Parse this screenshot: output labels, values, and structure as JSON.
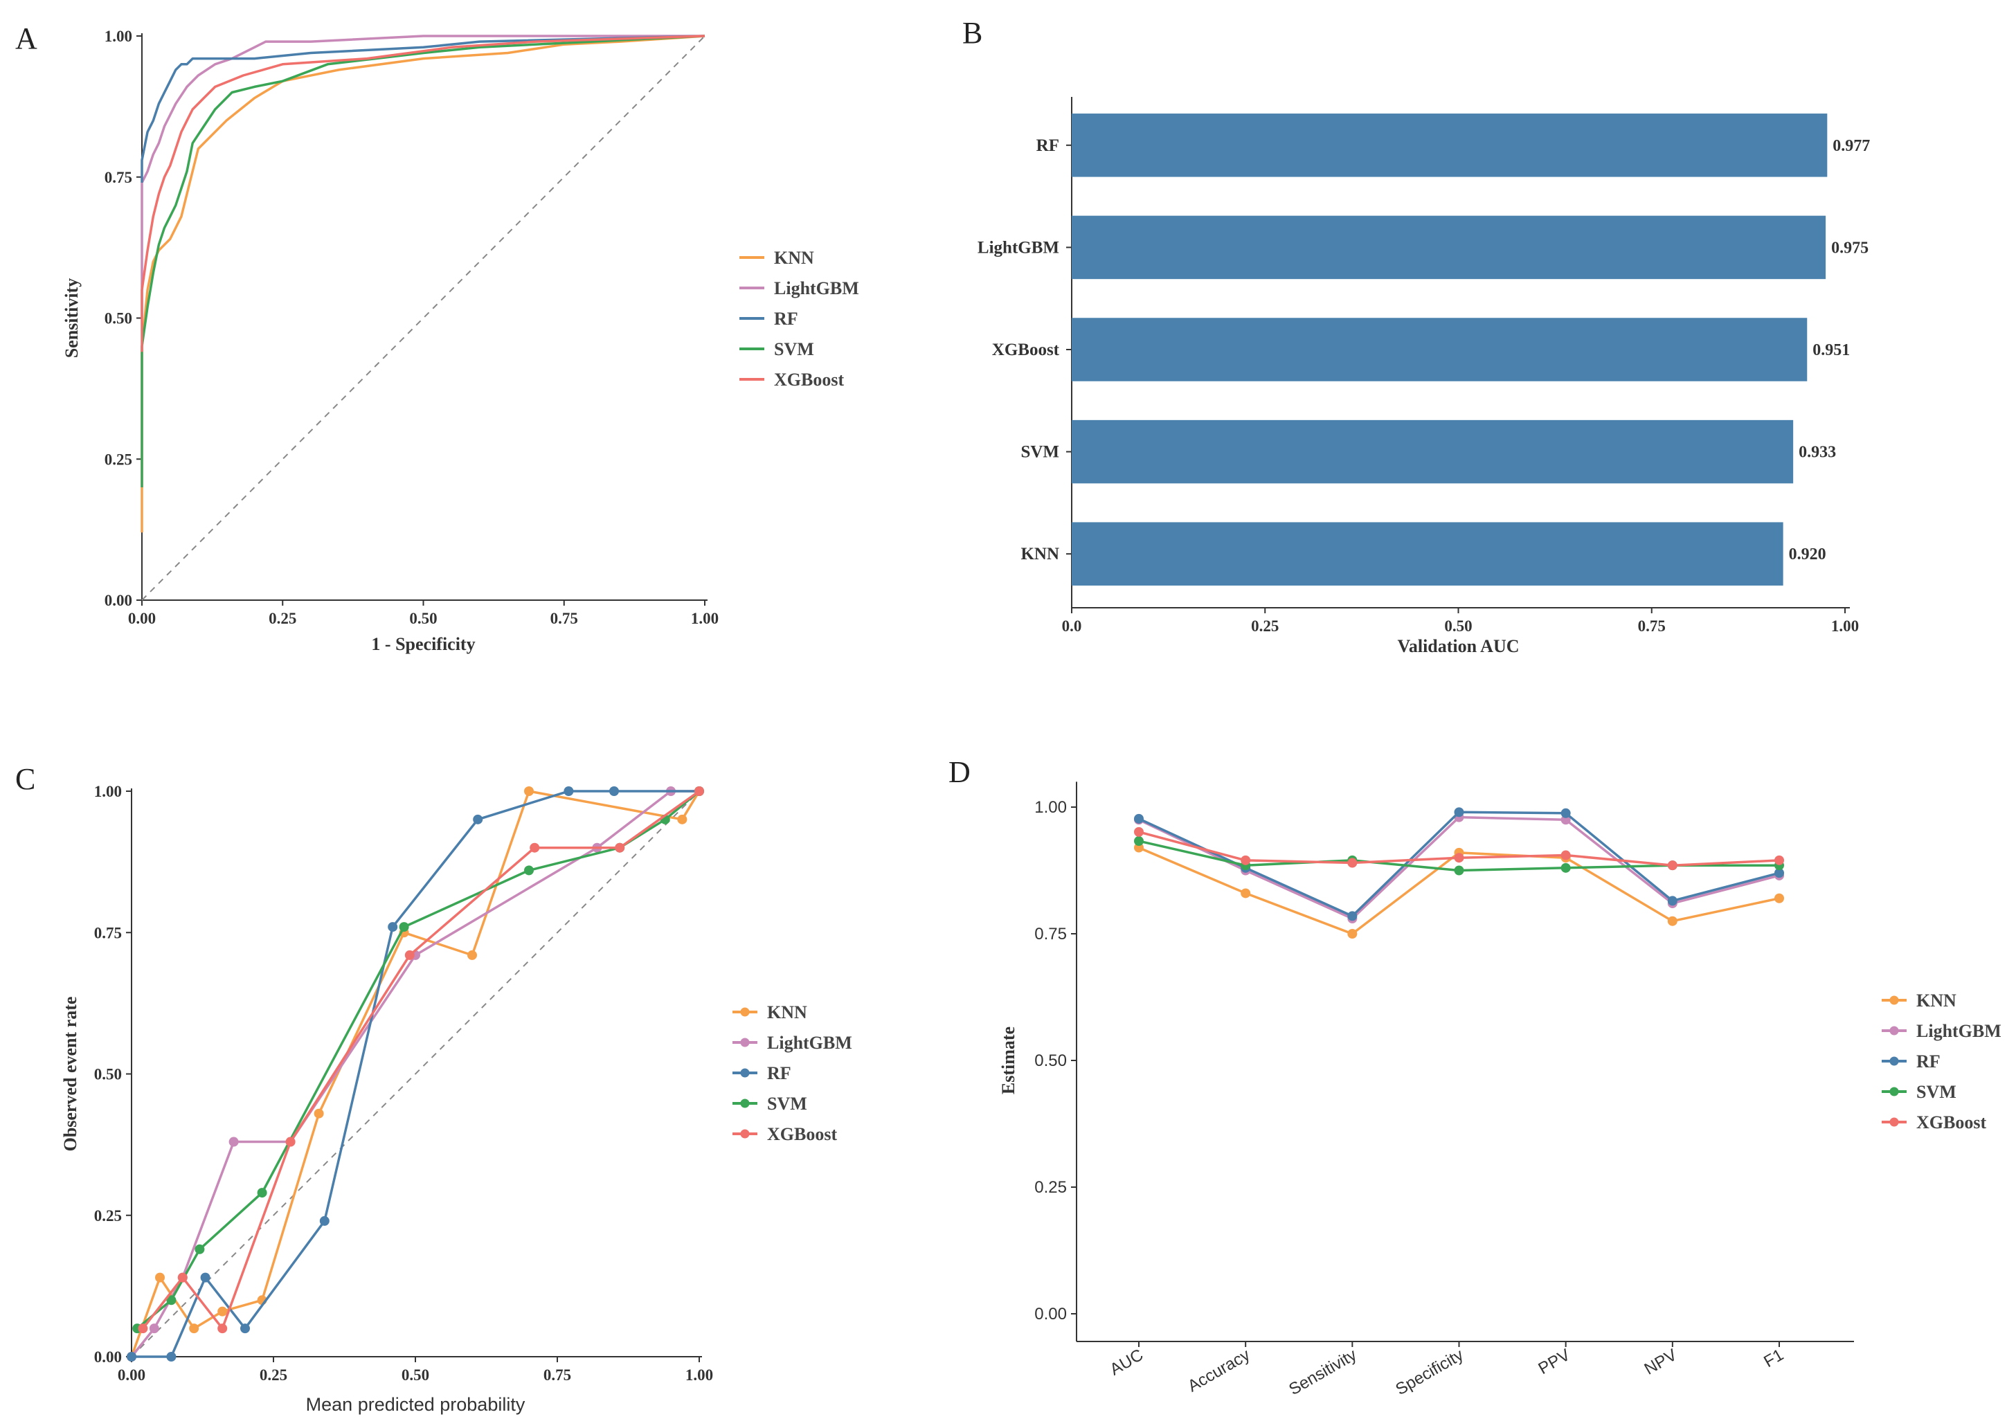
{
  "colors": {
    "KNN": "#f7a04a",
    "LightGBM": "#c888b8",
    "RF": "#4a7eab",
    "SVM": "#3aa655",
    "XGBoost": "#f0706c",
    "bar": "#4a82ad"
  },
  "panels": {
    "A": "A",
    "B": "B",
    "C": "C",
    "D": "D"
  },
  "chart_data": [
    {
      "panel": "A",
      "type": "line",
      "xlabel": "1 - Specificity",
      "ylabel": "Sensitivity",
      "xlim": [
        0,
        1
      ],
      "ylim": [
        0,
        1
      ],
      "xticks": [
        "0.00",
        "0.25",
        "0.50",
        "0.75",
        "1.00"
      ],
      "yticks": [
        "0.00",
        "0.25",
        "0.50",
        "0.75",
        "1.00"
      ],
      "diagonal_reference": true,
      "legend_placement": "right",
      "series": [
        {
          "name": "KNN",
          "x": [
            0,
            0,
            0.01,
            0.02,
            0.03,
            0.05,
            0.07,
            0.08,
            0.1,
            0.15,
            0.2,
            0.25,
            0.35,
            0.5,
            0.65,
            0.75,
            0.85,
            1.0
          ],
          "y": [
            0.12,
            0.45,
            0.55,
            0.6,
            0.62,
            0.64,
            0.68,
            0.72,
            0.8,
            0.85,
            0.89,
            0.92,
            0.94,
            0.96,
            0.97,
            0.985,
            0.99,
            1.0
          ]
        },
        {
          "name": "LightGBM",
          "x": [
            0,
            0,
            0.01,
            0.02,
            0.03,
            0.04,
            0.05,
            0.06,
            0.08,
            0.1,
            0.13,
            0.16,
            0.2,
            0.22,
            0.3,
            0.5,
            1.0
          ],
          "y": [
            0.5,
            0.74,
            0.76,
            0.79,
            0.81,
            0.84,
            0.86,
            0.88,
            0.91,
            0.93,
            0.95,
            0.96,
            0.98,
            0.99,
            0.99,
            1.0,
            1.0
          ]
        },
        {
          "name": "RF",
          "x": [
            0,
            0,
            0.01,
            0.02,
            0.03,
            0.04,
            0.05,
            0.06,
            0.07,
            0.08,
            0.09,
            0.1,
            0.2,
            0.3,
            0.5,
            0.6,
            1.0
          ],
          "y": [
            0.74,
            0.78,
            0.83,
            0.85,
            0.88,
            0.9,
            0.92,
            0.94,
            0.95,
            0.95,
            0.96,
            0.96,
            0.96,
            0.97,
            0.98,
            0.99,
            1.0
          ]
        },
        {
          "name": "SVM",
          "x": [
            0,
            0,
            0.01,
            0.02,
            0.03,
            0.04,
            0.05,
            0.06,
            0.07,
            0.08,
            0.09,
            0.11,
            0.13,
            0.16,
            0.2,
            0.25,
            0.33,
            0.5,
            0.6,
            0.8,
            1.0
          ],
          "y": [
            0.2,
            0.45,
            0.52,
            0.58,
            0.63,
            0.66,
            0.68,
            0.7,
            0.73,
            0.76,
            0.81,
            0.84,
            0.87,
            0.9,
            0.91,
            0.92,
            0.95,
            0.97,
            0.98,
            0.99,
            1.0
          ]
        },
        {
          "name": "XGBoost",
          "x": [
            0,
            0,
            0.01,
            0.02,
            0.03,
            0.04,
            0.05,
            0.06,
            0.07,
            0.08,
            0.09,
            0.11,
            0.13,
            0.18,
            0.25,
            0.4,
            0.55,
            0.7,
            1.0
          ],
          "y": [
            0.44,
            0.55,
            0.62,
            0.68,
            0.72,
            0.75,
            0.77,
            0.8,
            0.83,
            0.85,
            0.87,
            0.89,
            0.91,
            0.93,
            0.95,
            0.96,
            0.98,
            0.99,
            1.0
          ]
        }
      ]
    },
    {
      "panel": "B",
      "type": "bar",
      "orientation": "horizontal",
      "xlabel": "Validation AUC",
      "xlim": [
        0,
        1
      ],
      "xticks": [
        "0.0",
        "0.25",
        "0.50",
        "0.75",
        "1.00"
      ],
      "categories": [
        "RF",
        "LightGBM",
        "XGBoost",
        "SVM",
        "KNN"
      ],
      "values": [
        0.977,
        0.975,
        0.951,
        0.933,
        0.92
      ],
      "value_labels": [
        "0.977",
        "0.975",
        "0.951",
        "0.933",
        "0.920"
      ]
    },
    {
      "panel": "C",
      "type": "line",
      "markers": true,
      "xlabel": "Mean predicted probability",
      "ylabel": "Observed event rate",
      "xlim": [
        0,
        1
      ],
      "ylim": [
        0,
        1
      ],
      "xticks": [
        "0.00",
        "0.25",
        "0.50",
        "0.75",
        "1.00"
      ],
      "yticks": [
        "0.00",
        "0.25",
        "0.50",
        "0.75",
        "1.00"
      ],
      "diagonal_reference": true,
      "legend_placement": "right",
      "series": [
        {
          "name": "KNN",
          "x": [
            0.0,
            0.05,
            0.11,
            0.16,
            0.23,
            0.33,
            0.48,
            0.6,
            0.7,
            0.97,
            1.0
          ],
          "y": [
            0.0,
            0.14,
            0.05,
            0.08,
            0.1,
            0.43,
            0.75,
            0.71,
            1.0,
            0.95,
            1.0
          ]
        },
        {
          "name": "LightGBM",
          "x": [
            0.0,
            0.04,
            0.09,
            0.18,
            0.28,
            0.5,
            0.82,
            0.95,
            1.0
          ],
          "y": [
            0.0,
            0.05,
            0.14,
            0.38,
            0.38,
            0.71,
            0.9,
            1.0,
            1.0
          ]
        },
        {
          "name": "RF",
          "x": [
            0.0,
            0.07,
            0.13,
            0.2,
            0.34,
            0.46,
            0.61,
            0.77,
            0.85,
            1.0
          ],
          "y": [
            0.0,
            0.0,
            0.14,
            0.05,
            0.24,
            0.76,
            0.95,
            1.0,
            1.0,
            1.0
          ]
        },
        {
          "name": "SVM",
          "x": [
            0.01,
            0.07,
            0.12,
            0.23,
            0.48,
            0.7,
            0.86,
            0.94,
            1.0
          ],
          "y": [
            0.05,
            0.1,
            0.19,
            0.29,
            0.76,
            0.86,
            0.9,
            0.95,
            1.0
          ]
        },
        {
          "name": "XGBoost",
          "x": [
            0.02,
            0.09,
            0.16,
            0.28,
            0.49,
            0.71,
            0.86,
            1.0
          ],
          "y": [
            0.05,
            0.14,
            0.05,
            0.38,
            0.71,
            0.9,
            0.9,
            1.0
          ]
        }
      ]
    },
    {
      "panel": "D",
      "type": "line",
      "markers": true,
      "ylabel": "Estimate",
      "ylim": [
        0,
        1.05
      ],
      "yticks": [
        "0.00",
        "0.25",
        "0.50",
        "0.75",
        "1.00"
      ],
      "categories": [
        "AUC",
        "Accuracy",
        "Sensitivity",
        "Specificity",
        "PPV",
        "NPV",
        "F1"
      ],
      "legend_placement": "right",
      "series": [
        {
          "name": "KNN",
          "values": [
            0.92,
            0.83,
            0.75,
            0.91,
            0.9,
            0.775,
            0.82
          ]
        },
        {
          "name": "LightGBM",
          "values": [
            0.975,
            0.875,
            0.78,
            0.98,
            0.975,
            0.81,
            0.865
          ]
        },
        {
          "name": "RF",
          "values": [
            0.977,
            0.88,
            0.785,
            0.99,
            0.988,
            0.815,
            0.87
          ]
        },
        {
          "name": "SVM",
          "values": [
            0.933,
            0.885,
            0.895,
            0.875,
            0.88,
            0.885,
            0.885
          ]
        },
        {
          "name": "XGBoost",
          "values": [
            0.951,
            0.895,
            0.89,
            0.9,
            0.905,
            0.885,
            0.895
          ]
        }
      ]
    }
  ]
}
